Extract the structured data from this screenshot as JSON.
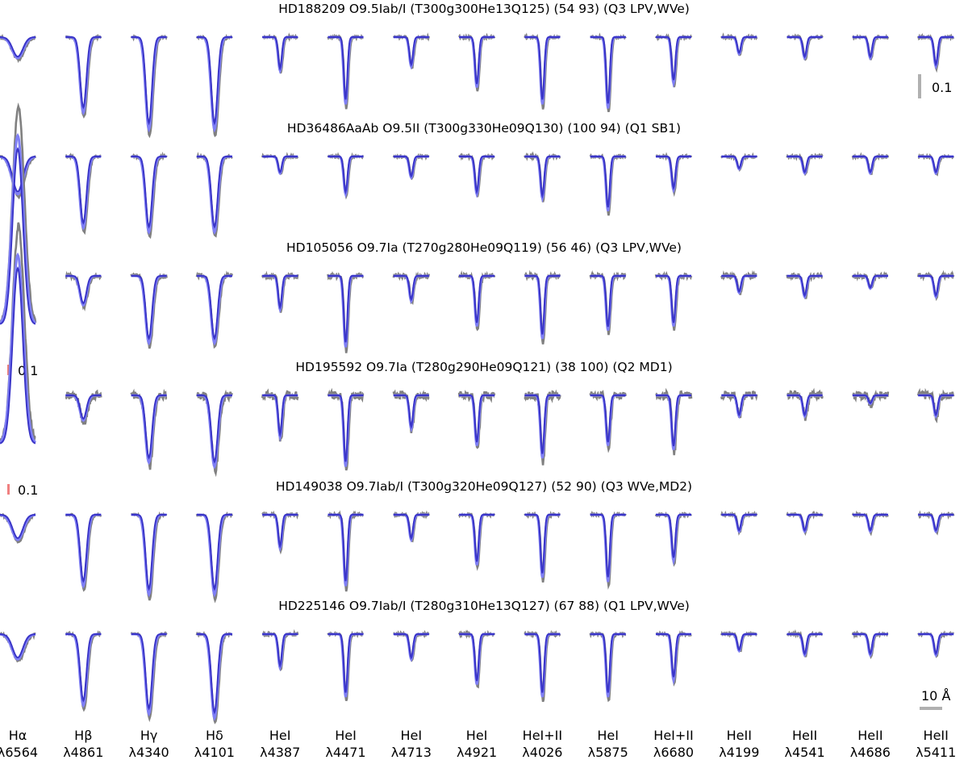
{
  "colors": {
    "observed": "#808080",
    "model_light": "#7f7ff5",
    "model_dark": "#3a35c8",
    "scale_bar": "#b0b0b0",
    "scale_bar_emission": "#f08080"
  },
  "chart_data": {
    "type": "line",
    "description_units": {
      "x": "wavelength (Å)",
      "y": "normalized flux"
    },
    "columns": [
      {
        "ion": "Hα",
        "wavelength": "λ6564"
      },
      {
        "ion": "Hβ",
        "wavelength": "λ4861"
      },
      {
        "ion": "Hγ",
        "wavelength": "λ4340"
      },
      {
        "ion": "Hδ",
        "wavelength": "λ4101"
      },
      {
        "ion": "HeI",
        "wavelength": "λ4387"
      },
      {
        "ion": "HeI",
        "wavelength": "λ4471"
      },
      {
        "ion": "HeI",
        "wavelength": "λ4713"
      },
      {
        "ion": "HeI",
        "wavelength": "λ4921"
      },
      {
        "ion": "HeI+II",
        "wavelength": "λ4026"
      },
      {
        "ion": "HeI",
        "wavelength": "λ5875"
      },
      {
        "ion": "HeI+II",
        "wavelength": "λ6680"
      },
      {
        "ion": "HeII",
        "wavelength": "λ4199"
      },
      {
        "ion": "HeII",
        "wavelength": "λ4541"
      },
      {
        "ion": "HeII",
        "wavelength": "λ4686"
      },
      {
        "ion": "HeII",
        "wavelength": "λ5411"
      }
    ],
    "rows": [
      {
        "title": "HD188209 O9.5Iab/I (T300g300He13Q125) (54 93) (Q3 LPV,WVe)",
        "depths": [
          0.05,
          0.18,
          0.22,
          0.22,
          0.08,
          0.16,
          0.07,
          0.12,
          0.16,
          0.17,
          0.11,
          0.04,
          0.05,
          0.05,
          0.07
        ]
      },
      {
        "title": "HD36486AaAb O9.5II (T300g330He09Q130) (100 94) (Q1 SB1)",
        "depths": [
          0.09,
          0.17,
          0.18,
          0.18,
          0.04,
          0.09,
          0.05,
          0.09,
          0.1,
          0.13,
          0.08,
          0.03,
          0.04,
          0.04,
          0.04
        ]
      },
      {
        "title": "HD105056 O9.7Ia (T270g280He09Q119) (56 46) (Q3 LPV,WVe)",
        "depths": [
          -0.45,
          0.07,
          0.16,
          0.16,
          0.08,
          0.17,
          0.06,
          0.12,
          0.15,
          0.13,
          0.12,
          0.04,
          0.05,
          0.03,
          0.05
        ]
      },
      {
        "title": "HD195592 O9.7Ia (T280g290He09Q121) (38 100) (Q2 MD1)",
        "depths": [
          -0.45,
          0.06,
          0.16,
          0.17,
          0.1,
          0.17,
          0.08,
          0.12,
          0.15,
          0.12,
          0.13,
          0.05,
          0.05,
          0.02,
          0.05
        ]
      },
      {
        "title": "HD149038 O9.7Iab/I (T300g320He09Q127) (52 90) (Q3 WVe,MD2)",
        "depths": [
          0.06,
          0.17,
          0.19,
          0.19,
          0.08,
          0.17,
          0.06,
          0.12,
          0.15,
          0.16,
          0.11,
          0.04,
          0.04,
          0.04,
          0.04
        ]
      },
      {
        "title": "HD225146 O9.7Iab/I (T280g310He13Q127) (67 88) (Q1 LPV,WVe)",
        "depths": [
          0.06,
          0.17,
          0.19,
          0.2,
          0.08,
          0.15,
          0.06,
          0.12,
          0.15,
          0.15,
          0.11,
          0.04,
          0.05,
          0.05,
          0.05
        ]
      }
    ],
    "scale_flux_label": "0.1",
    "scale_wavelength_label": "10 Å",
    "emission_scale_label": "0.1"
  }
}
